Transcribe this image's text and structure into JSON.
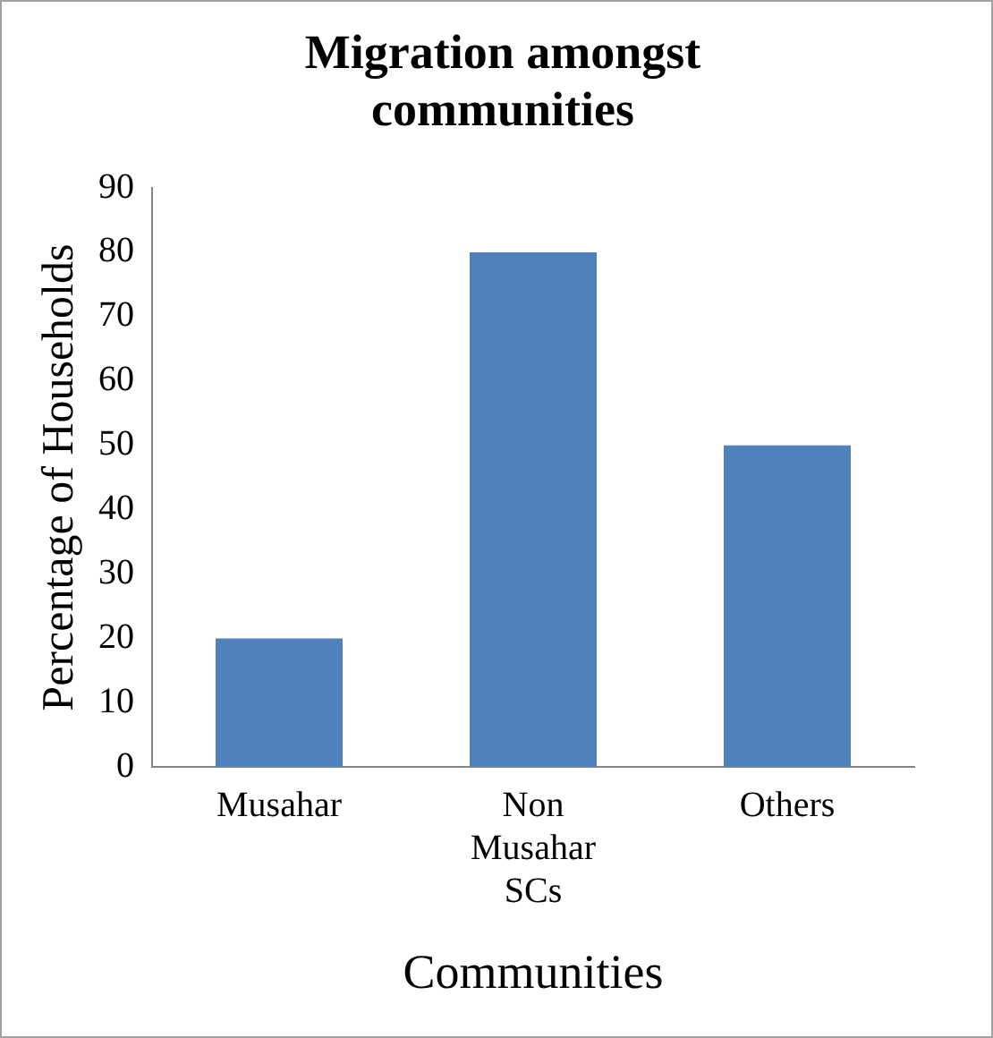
{
  "chart_data": {
    "type": "bar",
    "title": "Migration amongst communities",
    "xlabel": "Communities",
    "ylabel": "Percentage of Households",
    "categories": [
      "Musahar",
      "Non Musahar SCs",
      "Others"
    ],
    "values": [
      20,
      80,
      50
    ],
    "color": "#4f81bd",
    "ylim": [
      0,
      90
    ],
    "yticks": [
      0,
      10,
      20,
      30,
      40,
      50,
      60,
      70,
      80,
      90
    ],
    "grid": false,
    "legend": false
  }
}
